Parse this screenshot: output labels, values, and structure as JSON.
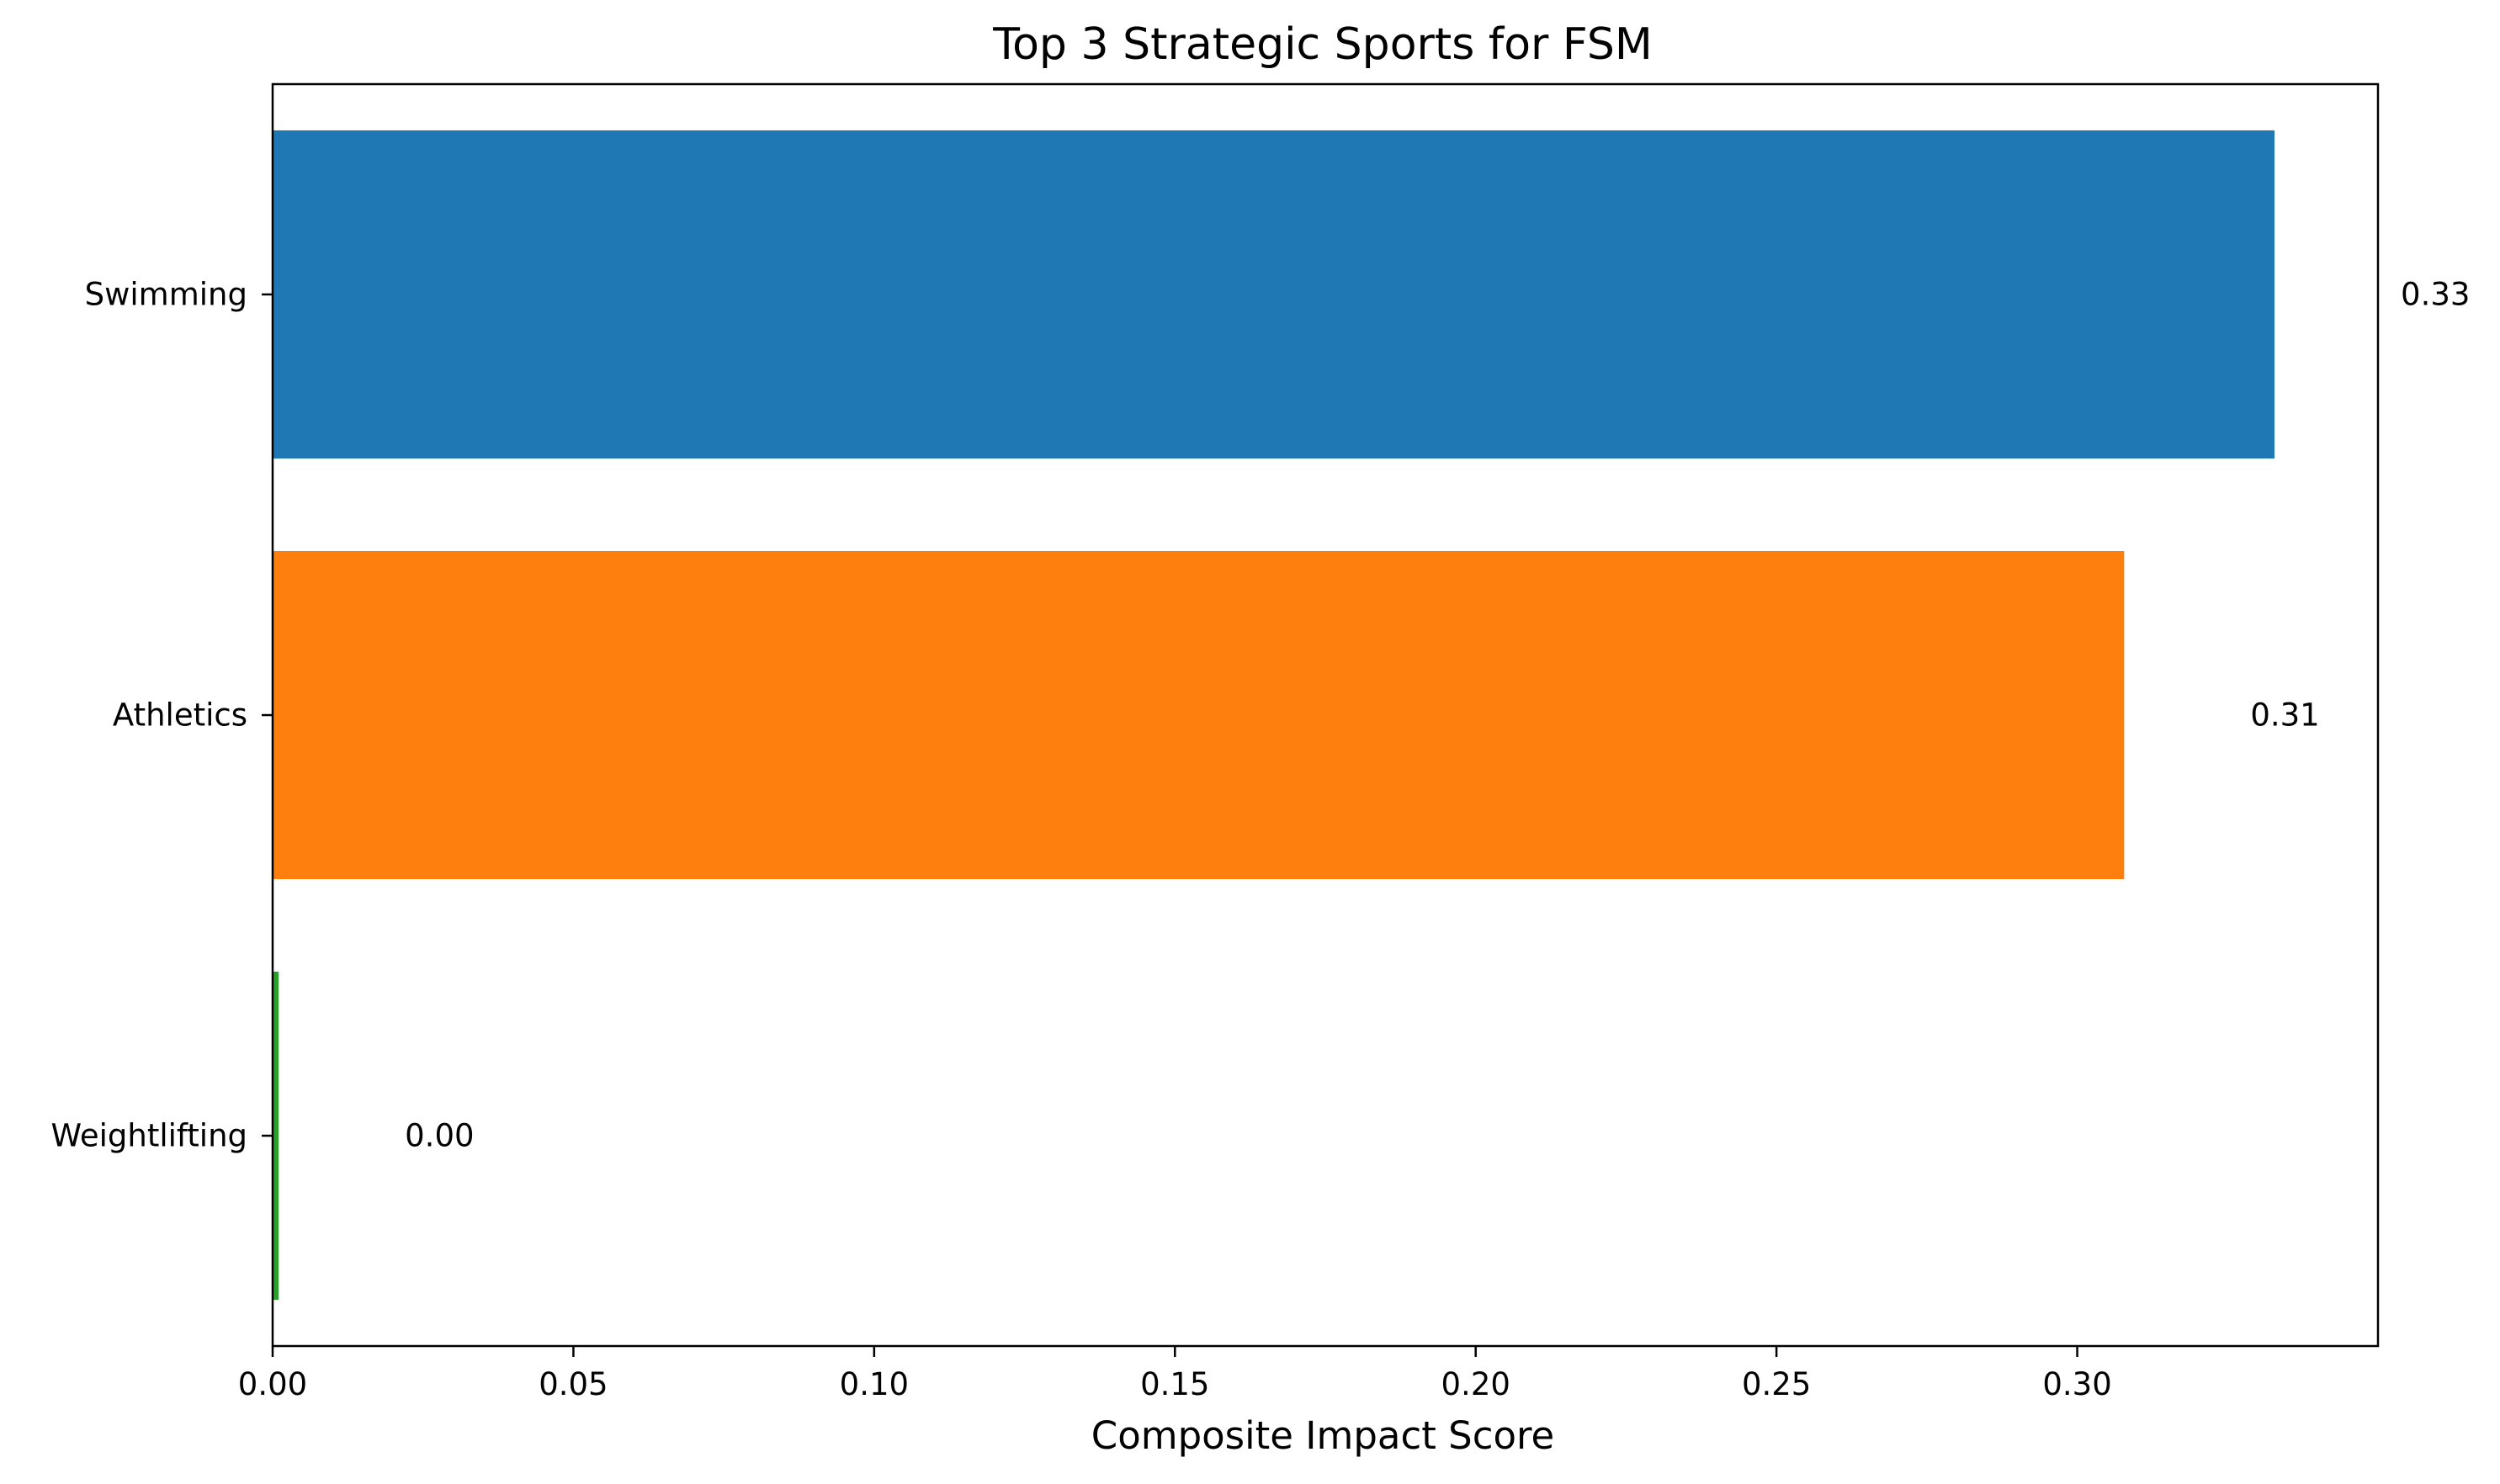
{
  "chart_data": {
    "type": "bar",
    "orientation": "horizontal",
    "title": "Top 3 Strategic Sports for FSM",
    "xlabel": "Composite Impact Score",
    "ylabel": "",
    "categories": [
      "Swimming",
      "Athletics",
      "Weightlifting"
    ],
    "values": [
      0.3328,
      0.3078,
      0.001
    ],
    "data_labels": [
      "0.33",
      "0.31",
      "0.00"
    ],
    "colors": [
      "#1f77b4",
      "#ff7f0e",
      "#2ca02c"
    ],
    "xlim": [
      0,
      0.35
    ],
    "xticks": [
      0.0,
      0.05,
      0.1,
      0.15,
      0.2,
      0.25,
      0.3
    ],
    "xtick_labels": [
      "0.00",
      "0.05",
      "0.10",
      "0.15",
      "0.20",
      "0.25",
      "0.30"
    ],
    "grid": false,
    "legend": "none"
  }
}
